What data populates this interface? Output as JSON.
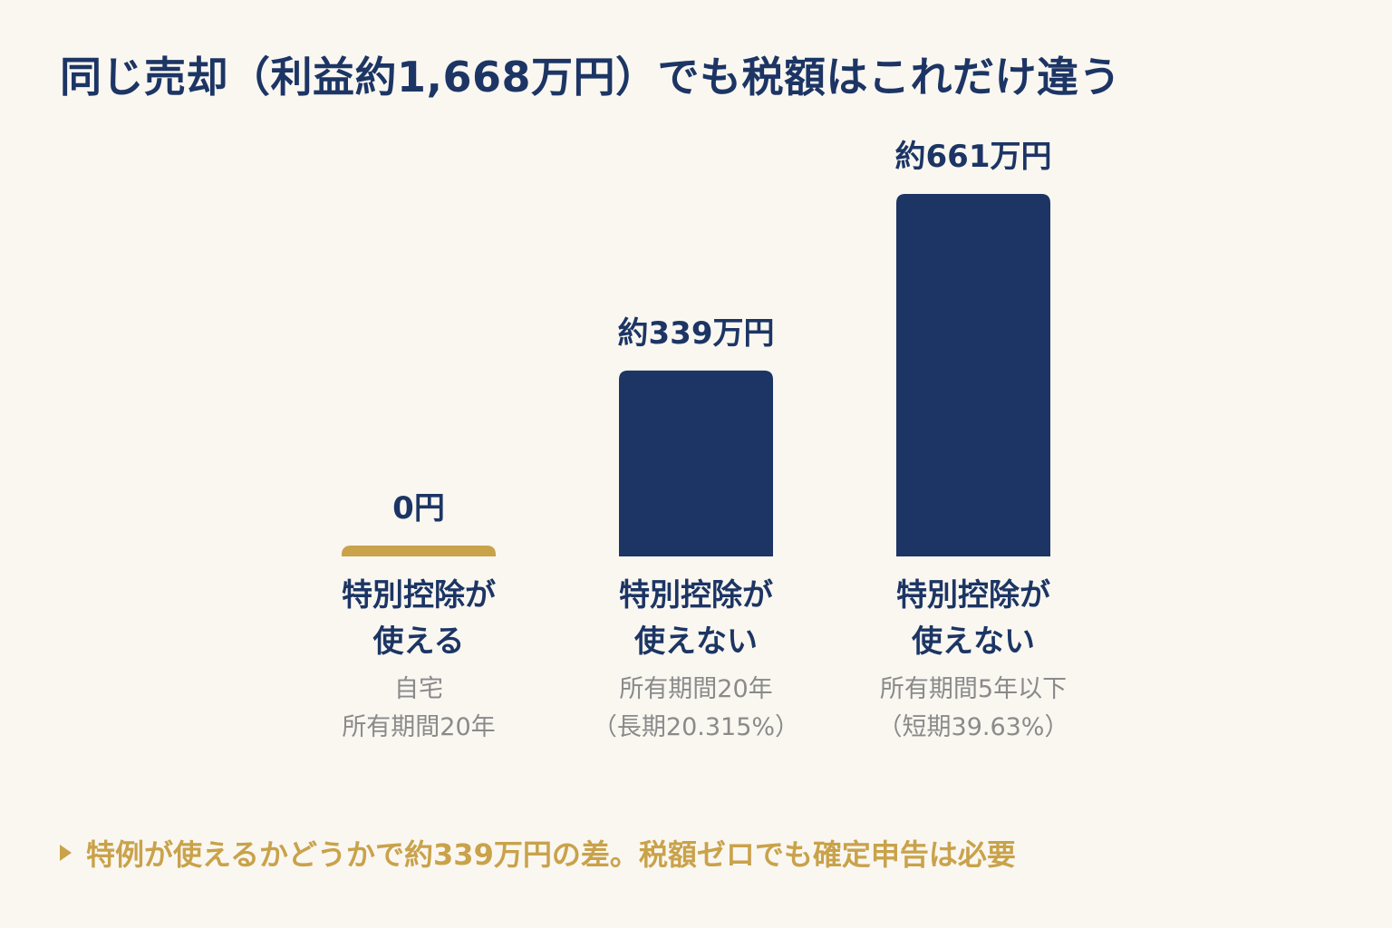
{
  "colors": {
    "background": "#FAF7F1",
    "navy": "#1C3564",
    "gold": "#C9A24A",
    "gray": "#8A8A8A"
  },
  "title": "同じ売却（利益約1,668万円）でも税額はこれだけ違う",
  "chart_data": {
    "type": "bar",
    "title": "同じ売却（利益約1,668万円）でも税額はこれだけ違う",
    "xlabel": "",
    "ylabel": "",
    "unit": "万円",
    "categories": [
      "特別控除が使える",
      "特別控除が使えない",
      "特別控除が使えない"
    ],
    "values": [
      0,
      339,
      661
    ],
    "value_labels": [
      "0円",
      "約339万円",
      "約661万円"
    ],
    "ylim": [
      0,
      661
    ],
    "grid": false,
    "legend": "none",
    "bars": [
      {
        "category": "特別控除が\n使える",
        "detail": "自宅\n所有期間20年",
        "value": 0,
        "value_label": "0円",
        "color": "#C9A24A"
      },
      {
        "category": "特別控除が\n使えない",
        "detail": "所有期間20年\n（長期20.315%）",
        "value": 339,
        "value_label": "約339万円",
        "color": "#1C3564"
      },
      {
        "category": "特別控除が\n使えない",
        "detail": "所有期間5年以下\n（短期39.63%）",
        "value": 661,
        "value_label": "約661万円",
        "color": "#1C3564"
      }
    ]
  },
  "footnote": "特例が使えるかどうかで約339万円の差。税額ゼロでも確定申告は必要",
  "footnote_icon": "triangle-right-icon"
}
